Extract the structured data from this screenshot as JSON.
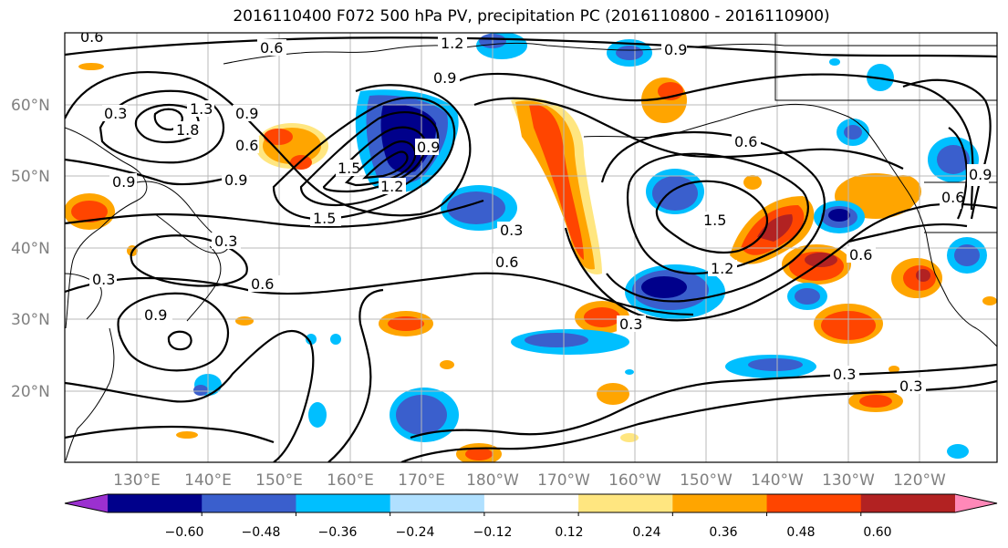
{
  "title": "2016110400 F072 500 hPa PV, precipitation PC (2016110800 - 2016110900)",
  "lat_labels": [
    "60°N",
    "50°N",
    "40°N",
    "30°N",
    "20°N"
  ],
  "lon_labels": [
    "130°E",
    "140°E",
    "150°E",
    "160°E",
    "170°E",
    "180°W",
    "170°W",
    "160°W",
    "150°W",
    "140°W",
    "130°W",
    "120°W"
  ],
  "contour_labels": [
    "0.6",
    "0.6",
    "1.2",
    "0.9",
    "0.9",
    "0.6",
    "1.8",
    "1.3",
    "0.9",
    "0.9",
    "0.9",
    "0.3",
    "0.3",
    "0.6",
    "0.9",
    "1.5",
    "0.6",
    "0.3",
    "1.5",
    "1.2",
    "0.6",
    "0.3",
    "0.3",
    "0.3",
    "0.9",
    "0.6",
    "1.5",
    "1.2",
    "0.9",
    "0.6",
    "0.3"
  ],
  "colorbar": {
    "ticks": [
      "−0.60",
      "−0.48",
      "−0.36",
      "−0.24",
      "−0.12",
      "0.12",
      "0.24",
      "0.36",
      "0.48",
      "0.60"
    ],
    "colors": [
      "#9b30d0",
      "#00008b",
      "#3a5fcd",
      "#00bfff",
      "#b0e0ff",
      "#ffffff",
      "#ffe680",
      "#ffa500",
      "#ff4500",
      "#b22222",
      "#ff88b8"
    ]
  },
  "colors": {
    "neg_strong": "#00008b",
    "neg_mid": "#3a5fcd",
    "neg_weak": "#00bfff",
    "neg_faint": "#b0e0ff",
    "pos_faint": "#ffe680",
    "pos_weak": "#ffa500",
    "pos_mid": "#ff4500",
    "pos_strong": "#b22222"
  }
}
